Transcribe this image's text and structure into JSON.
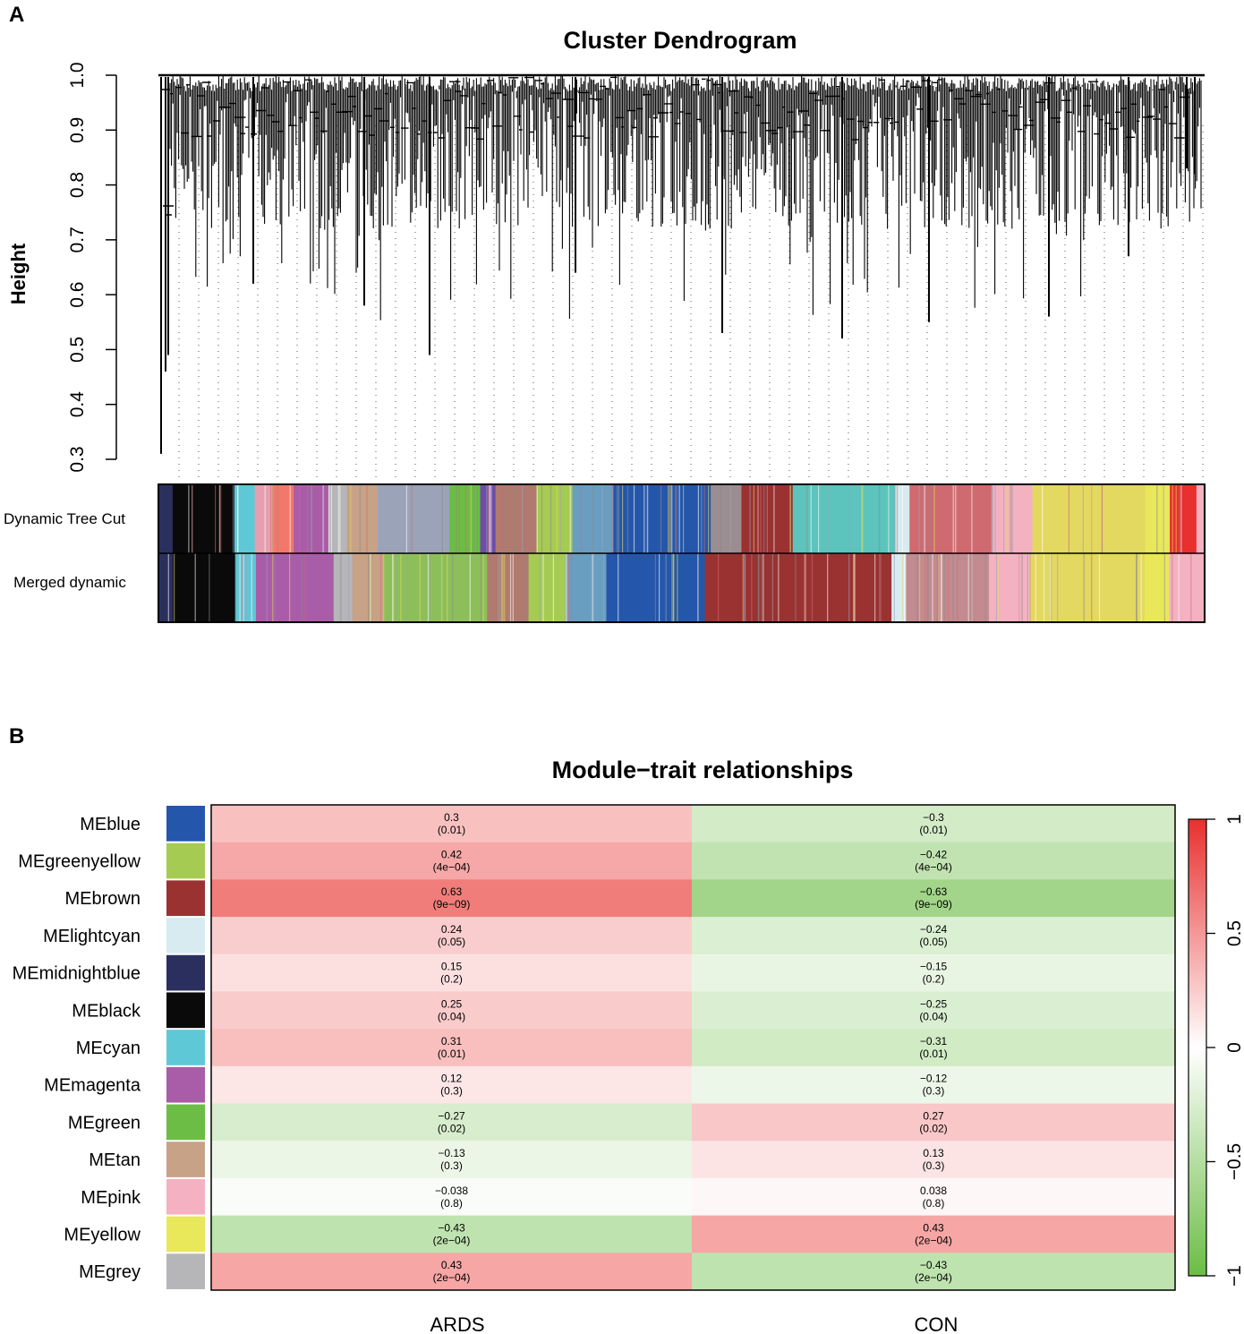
{
  "panel_labels": {
    "a": "A",
    "b": "B"
  },
  "chart_data": [
    {
      "type": "dendrogram",
      "title": "Cluster Dendrogram",
      "ylabel": "Height",
      "xlabel": "",
      "ylim": [
        0.3,
        1.0
      ],
      "yticks": [
        "0.3",
        "0.4",
        "0.5",
        "0.6",
        "0.7",
        "0.8",
        "0.9",
        "1.0"
      ],
      "color_rows": [
        {
          "label": "Dynamic Tree Cut",
          "segments": [
            {
              "color": "#2b2f5e",
              "width": 1.4
            },
            {
              "color": "#0a0a0a",
              "width": 6.0
            },
            {
              "color": "#5fc8d6",
              "width": 2.0
            },
            {
              "color": "#e5a0b0",
              "width": 1.8
            },
            {
              "color": "#f2786b",
              "width": 2.0
            },
            {
              "color": "#a95ca8",
              "width": 3.4
            },
            {
              "color": "#b6b6b8",
              "width": 1.8
            },
            {
              "color": "#c7a287",
              "width": 3.0
            },
            {
              "color": "#9aa3b8",
              "width": 7.0
            },
            {
              "color": "#6bbd45",
              "width": 3.0
            },
            {
              "color": "#6f4da5",
              "width": 1.5
            },
            {
              "color": "#b07a6e",
              "width": 4.0
            },
            {
              "color": "#a6cb52",
              "width": 3.5
            },
            {
              "color": "#6a9ec0",
              "width": 4.0
            },
            {
              "color": "#2457ab",
              "width": 9.5
            },
            {
              "color": "#9b8d90",
              "width": 3.0
            },
            {
              "color": "#9a3232",
              "width": 5.0
            },
            {
              "color": "#5cc4bd",
              "width": 10.0
            },
            {
              "color": "#d7ebf1",
              "width": 1.4
            },
            {
              "color": "#cf6b70",
              "width": 8.0
            },
            {
              "color": "#f3b1c2",
              "width": 4.0
            },
            {
              "color": "#e3d860",
              "width": 11.0
            },
            {
              "color": "#e9e75a",
              "width": 2.4
            },
            {
              "color": "#e8302e",
              "width": 2.6
            },
            {
              "color": "#f3b1c2",
              "width": 0.8
            }
          ]
        },
        {
          "label": "Merged dynamic",
          "segments": [
            {
              "color": "#2b2f5e",
              "width": 1.4
            },
            {
              "color": "#0a0a0a",
              "width": 6.0
            },
            {
              "color": "#5fc8d6",
              "width": 2.0
            },
            {
              "color": "#a95ca8",
              "width": 7.5
            },
            {
              "color": "#b6b6b8",
              "width": 1.8
            },
            {
              "color": "#c7a287",
              "width": 3.0
            },
            {
              "color": "#8cbf5a",
              "width": 10.0
            },
            {
              "color": "#b07a6e",
              "width": 4.0
            },
            {
              "color": "#a6cb52",
              "width": 3.5
            },
            {
              "color": "#6a9ec0",
              "width": 4.0
            },
            {
              "color": "#2457ab",
              "width": 9.5
            },
            {
              "color": "#9a3232",
              "width": 18.0
            },
            {
              "color": "#d7ebf1",
              "width": 1.4
            },
            {
              "color": "#c28b8f",
              "width": 8.0
            },
            {
              "color": "#f3b1c2",
              "width": 4.0
            },
            {
              "color": "#e3d860",
              "width": 11.0
            },
            {
              "color": "#e9e75a",
              "width": 2.4
            },
            {
              "color": "#f3b1c2",
              "width": 3.4
            }
          ]
        }
      ]
    },
    {
      "type": "heatmap",
      "title": "Module−trait relationships",
      "columns": [
        "ARDS",
        "CON"
      ],
      "colorbar": {
        "ticks": [
          "1",
          "0.5",
          "0",
          "−0.5",
          "−1"
        ],
        "range": [
          -1,
          1
        ],
        "colors": {
          "low": "#6bbd45",
          "mid": "#ffffff",
          "high": "#e8302e"
        }
      },
      "rows": [
        {
          "module": "MEblue",
          "color": "#2457ab",
          "cells": [
            {
              "r": 0.3,
              "label": "0.3",
              "p": "(0.01)"
            },
            {
              "r": -0.3,
              "label": "−0.3",
              "p": "(0.01)"
            }
          ]
        },
        {
          "module": "MEgreenyellow",
          "color": "#a6cb52",
          "cells": [
            {
              "r": 0.42,
              "label": "0.42",
              "p": "(4e−04)"
            },
            {
              "r": -0.42,
              "label": "−0.42",
              "p": "(4e−04)"
            }
          ]
        },
        {
          "module": "MEbrown",
          "color": "#9a3232",
          "cells": [
            {
              "r": 0.63,
              "label": "0.63",
              "p": "(9e−09)"
            },
            {
              "r": -0.63,
              "label": "−0.63",
              "p": "(9e−09)"
            }
          ]
        },
        {
          "module": "MElightcyan",
          "color": "#d7ebf1",
          "cells": [
            {
              "r": 0.24,
              "label": "0.24",
              "p": "(0.05)"
            },
            {
              "r": -0.24,
              "label": "−0.24",
              "p": "(0.05)"
            }
          ]
        },
        {
          "module": "MEmidnightblue",
          "color": "#2b2f5e",
          "cells": [
            {
              "r": 0.15,
              "label": "0.15",
              "p": "(0.2)"
            },
            {
              "r": -0.15,
              "label": "−0.15",
              "p": "(0.2)"
            }
          ]
        },
        {
          "module": "MEblack",
          "color": "#0a0a0a",
          "cells": [
            {
              "r": 0.25,
              "label": "0.25",
              "p": "(0.04)"
            },
            {
              "r": -0.25,
              "label": "−0.25",
              "p": "(0.04)"
            }
          ]
        },
        {
          "module": "MEcyan",
          "color": "#5fc8d6",
          "cells": [
            {
              "r": 0.31,
              "label": "0.31",
              "p": "(0.01)"
            },
            {
              "r": -0.31,
              "label": "−0.31",
              "p": "(0.01)"
            }
          ]
        },
        {
          "module": "MEmagenta",
          "color": "#a95ca8",
          "cells": [
            {
              "r": 0.12,
              "label": "0.12",
              "p": "(0.3)"
            },
            {
              "r": -0.12,
              "label": "−0.12",
              "p": "(0.3)"
            }
          ]
        },
        {
          "module": "MEgreen",
          "color": "#6bbd45",
          "cells": [
            {
              "r": -0.27,
              "label": "−0.27",
              "p": "(0.02)"
            },
            {
              "r": 0.27,
              "label": "0.27",
              "p": "(0.02)"
            }
          ]
        },
        {
          "module": "MEtan",
          "color": "#c7a287",
          "cells": [
            {
              "r": -0.13,
              "label": "−0.13",
              "p": "(0.3)"
            },
            {
              "r": 0.13,
              "label": "0.13",
              "p": "(0.3)"
            }
          ]
        },
        {
          "module": "MEpink",
          "color": "#f3b1c2",
          "cells": [
            {
              "r": -0.038,
              "label": "−0.038",
              "p": "(0.8)"
            },
            {
              "r": 0.038,
              "label": "0.038",
              "p": "(0.8)"
            }
          ]
        },
        {
          "module": "MEyellow",
          "color": "#e9e75a",
          "cells": [
            {
              "r": -0.43,
              "label": "−0.43",
              "p": "(2e−04)"
            },
            {
              "r": 0.43,
              "label": "0.43",
              "p": "(2e−04)"
            }
          ]
        },
        {
          "module": "MEgrey",
          "color": "#b6b6b8",
          "cells": [
            {
              "r": 0.43,
              "label": "0.43",
              "p": "(2e−04)"
            },
            {
              "r": -0.43,
              "label": "−0.43",
              "p": "(2e−04)"
            }
          ]
        }
      ]
    }
  ]
}
